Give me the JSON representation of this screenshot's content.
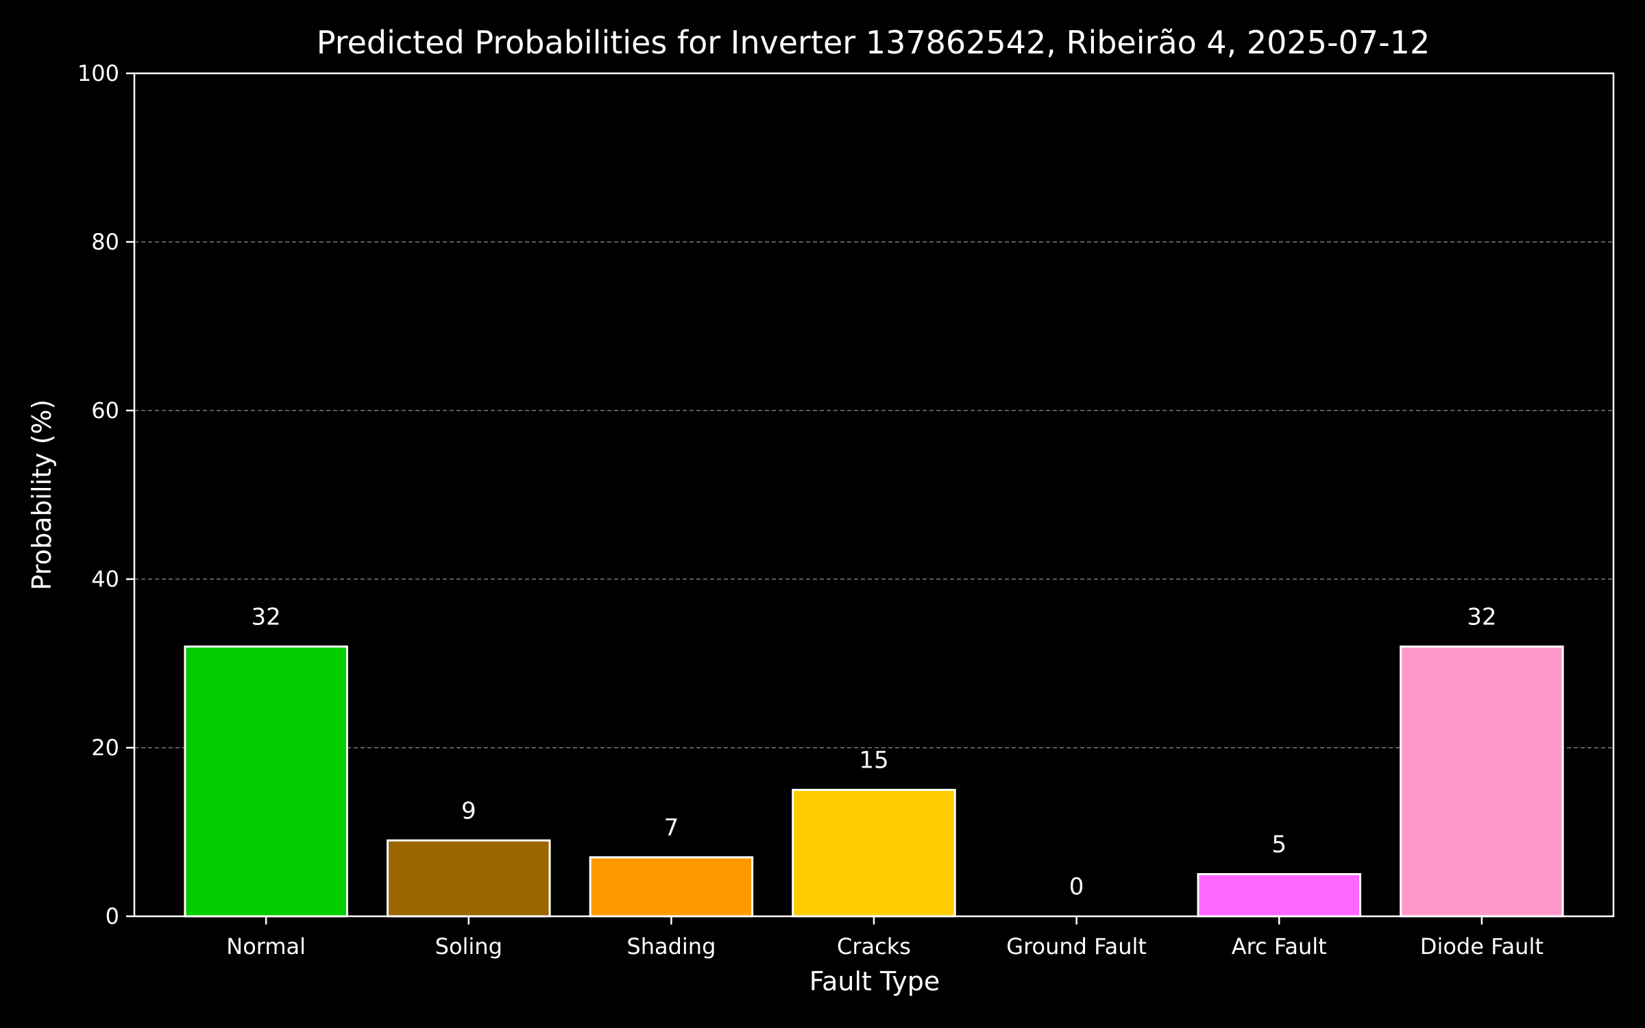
{
  "chart_data": {
    "type": "bar",
    "title": "Predicted Probabilities for Inverter 137862542, Ribeirão 4, 2025-07-12",
    "xlabel": "Fault Type",
    "ylabel": "Probability (%)",
    "ylim": [
      0,
      100
    ],
    "yticks": [
      0,
      20,
      40,
      60,
      80,
      100
    ],
    "grid": "y-dashed",
    "categories": [
      "Normal",
      "Soling",
      "Shading",
      "Cracks",
      "Ground Fault",
      "Arc Fault",
      "Diode Fault"
    ],
    "values": [
      32,
      9,
      7,
      15,
      0,
      5,
      32
    ],
    "value_labels": [
      "32",
      "9",
      "7",
      "15",
      "0",
      "5",
      "32"
    ],
    "colors": [
      "#00cc00",
      "#996600",
      "#ff9900",
      "#ffcc00",
      "#ff0000",
      "#ff66ff",
      "#ff99cc"
    ],
    "background": "#000000",
    "foreground": "#ffffff"
  }
}
